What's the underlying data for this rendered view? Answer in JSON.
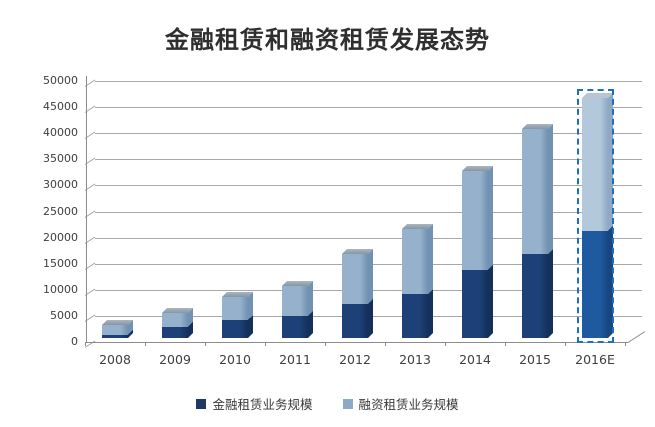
{
  "chart_data": {
    "type": "bar",
    "stacked": true,
    "title": "金融租赁和融资租赁发展态势",
    "categories": [
      "2008",
      "2009",
      "2010",
      "2011",
      "2012",
      "2013",
      "2014",
      "2015",
      "2016E"
    ],
    "series": [
      {
        "name": "金融租赁业务规模",
        "color": "#1c4077",
        "side_color": "#15305a",
        "legend_color": "#1f3864",
        "values": [
          600,
          2200,
          3500,
          4300,
          6500,
          8500,
          13000,
          16000,
          20500
        ]
      },
      {
        "name": "融资租赁业务规模",
        "color": "#96b1cc",
        "side_color": "#7192b2",
        "legend_color": "#8ea9c6",
        "values": [
          1900,
          2600,
          4500,
          5700,
          9500,
          12500,
          19000,
          24000,
          25500
        ]
      }
    ],
    "ylim": [
      0,
      50000
    ],
    "ytick_step": 5000,
    "ytick_labels": [
      "50000",
      "45000",
      "40000",
      "35000",
      "30000",
      "25000",
      "20000",
      "15000",
      "10000",
      "5000",
      "0"
    ],
    "grid": true,
    "legend_position": "bottom",
    "forecast_category": "2016E",
    "forecast_outline_color": "#1f6fbf",
    "forecast_colors": {
      "dark": "#1d5aa0",
      "dark_side": "#164781",
      "light": "#b4c8dc",
      "light_side": "#8fa9c4",
      "cap": "#b9c5d1"
    },
    "cap_color": "#8795a3",
    "cap_color_hi": "#aab6c1"
  }
}
